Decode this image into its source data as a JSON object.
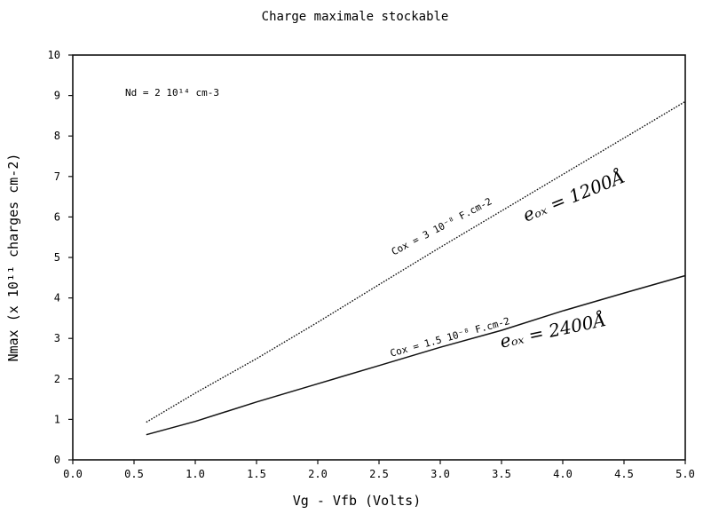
{
  "chart_data": {
    "type": "line",
    "title": "Charge maximale stockable",
    "xlabel": "Vg  -  Vfb  (Volts)",
    "ylabel": "Nmax  (x 10¹¹ charges cm-2)",
    "xlim": [
      0.0,
      5.0
    ],
    "ylim": [
      0,
      10
    ],
    "x_ticks": [
      "0.0",
      "0.5",
      "1.0",
      "1.5",
      "2.0",
      "2.5",
      "3.0",
      "3.5",
      "4.0",
      "4.5",
      "5.0"
    ],
    "y_ticks": [
      "0",
      "1",
      "2",
      "3",
      "4",
      "5",
      "6",
      "7",
      "8",
      "9",
      "10"
    ],
    "grid": false,
    "annotation": "Nd = 2 10¹⁴ cm-3",
    "series": [
      {
        "name": "Cox = 3 10⁻⁸ F.cm-2",
        "extra_label": "eₒₓ = 1200Å",
        "style": "dotted",
        "x": [
          0.6,
          1.0,
          1.5,
          2.0,
          2.5,
          3.0,
          3.5,
          4.0,
          4.5,
          5.0
        ],
        "y": [
          0.93,
          1.65,
          2.5,
          3.4,
          4.33,
          5.25,
          6.15,
          7.05,
          7.95,
          8.85
        ]
      },
      {
        "name": "Cox = 1.5 10⁻⁸ F.cm-2",
        "extra_label": "eₒₓ = 2400Å",
        "style": "solid",
        "x": [
          0.6,
          1.0,
          1.5,
          2.0,
          2.5,
          3.0,
          3.5,
          4.0,
          4.5,
          5.0
        ],
        "y": [
          0.62,
          0.95,
          1.43,
          1.88,
          2.33,
          2.78,
          3.2,
          3.68,
          4.12,
          4.55
        ]
      }
    ]
  }
}
